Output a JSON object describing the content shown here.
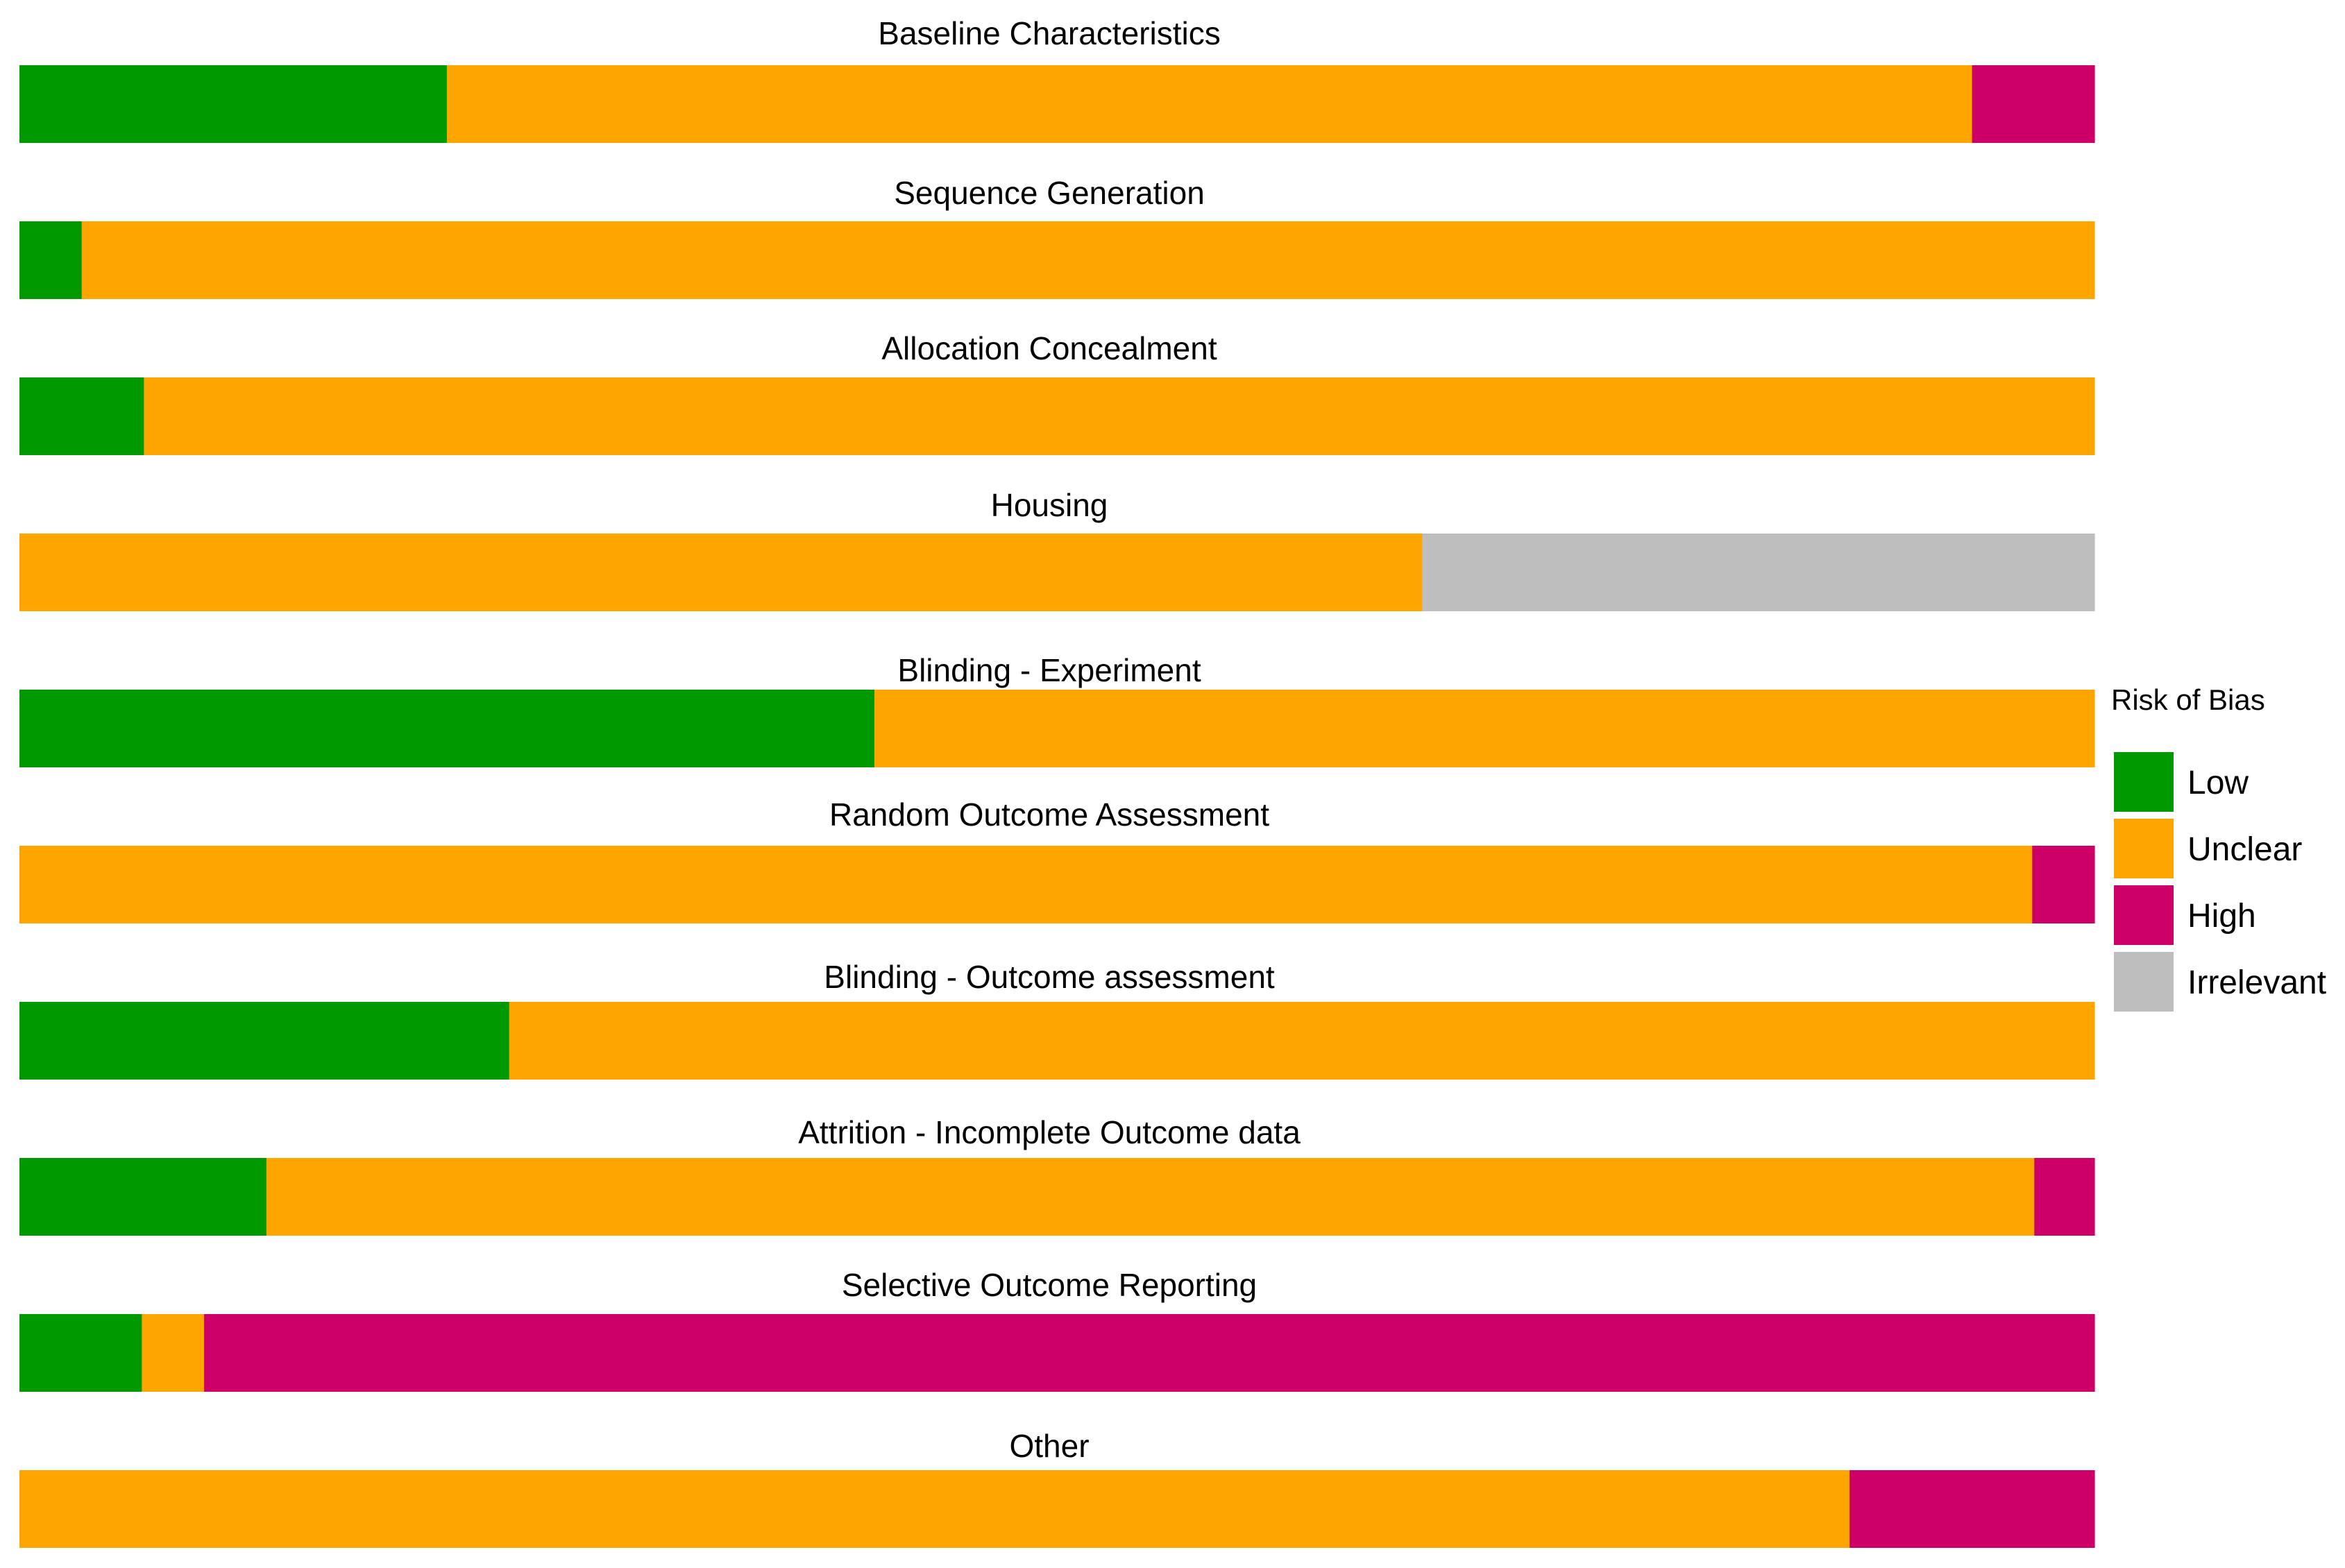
{
  "chart_data": {
    "type": "bar",
    "orientation": "horizontal-stacked-100",
    "title": "",
    "xlabel": "",
    "ylabel": "",
    "xlim": [
      0,
      100
    ],
    "grid": false,
    "legend": {
      "title": "Risk of Bias",
      "placement": "right"
    },
    "categories": [
      "Baseline Characteristics",
      "Sequence Generation",
      "Allocation Concealment",
      "Housing",
      "Blinding - Experiment",
      "Random Outcome Assessment",
      "Blinding - Outcome assessment",
      "Attrition - Incomplete Outcome data",
      "Selective Outcome Reporting",
      "Other"
    ],
    "series": [
      {
        "name": "Low",
        "color": "#009900",
        "values": [
          20.6,
          3.0,
          6.0,
          0,
          41.2,
          0,
          23.6,
          11.9,
          5.9,
          0
        ]
      },
      {
        "name": "Unclear",
        "color": "#FFA500",
        "values": [
          73.5,
          97.0,
          94.0,
          67.6,
          58.8,
          97.0,
          76.4,
          85.2,
          3.0,
          88.2
        ]
      },
      {
        "name": "High",
        "color": "#CC0066",
        "values": [
          5.9,
          0,
          0,
          0,
          0,
          3.0,
          0,
          2.9,
          91.1,
          11.8
        ]
      },
      {
        "name": "Irrelevant",
        "color": "#BEBEBE",
        "values": [
          0,
          0,
          0,
          32.4,
          0,
          0,
          0,
          0,
          0,
          0
        ]
      }
    ]
  }
}
